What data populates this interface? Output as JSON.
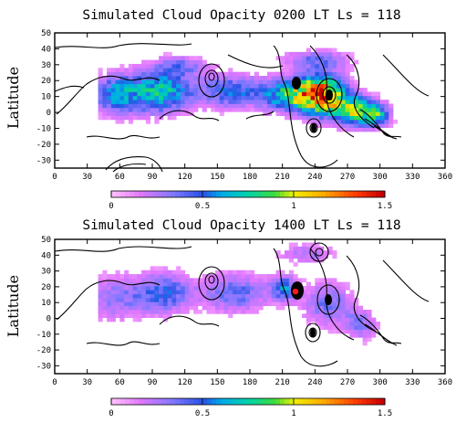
{
  "chart_data": [
    {
      "type": "heatmap",
      "title": "Simulated Cloud Opacity 0200 LT Ls = 118",
      "ylabel": "Latitude",
      "xlabel": "",
      "xlim": [
        0,
        360
      ],
      "ylim": [
        -35,
        50
      ],
      "x_ticks": [
        "0",
        "30",
        "60",
        "90",
        "120",
        "150",
        "180",
        "210",
        "240",
        "270",
        "300",
        "330",
        "360"
      ],
      "y_ticks": [
        "50",
        "40",
        "30",
        "20",
        "10",
        "0",
        "-10",
        "-20",
        "-30"
      ],
      "colorbar": {
        "range": [
          0,
          1.5
        ],
        "ticks": [
          "0",
          "0.5",
          "1",
          "1.5"
        ]
      },
      "blobs": [
        {
          "lon": 55,
          "lat": 10,
          "rlon": 22,
          "rlat": 12,
          "peak": 0.55
        },
        {
          "lon": 95,
          "lat": 12,
          "rlon": 28,
          "rlat": 13,
          "peak": 0.7
        },
        {
          "lon": 160,
          "lat": 12,
          "rlon": 30,
          "rlat": 10,
          "peak": 0.5
        },
        {
          "lon": 215,
          "lat": 10,
          "rlon": 25,
          "rlat": 10,
          "peak": 0.75
        },
        {
          "lon": 245,
          "lat": 10,
          "rlon": 20,
          "rlat": 12,
          "peak": 1.3
        },
        {
          "lon": 275,
          "lat": 0,
          "rlon": 18,
          "rlat": 9,
          "peak": 0.9
        },
        {
          "lon": 295,
          "lat": -3,
          "rlon": 12,
          "rlat": 7,
          "peak": 0.6
        },
        {
          "lon": 115,
          "lat": 28,
          "rlon": 25,
          "rlat": 6,
          "peak": 0.3
        },
        {
          "lon": 240,
          "lat": 32,
          "rlon": 30,
          "rlat": 6,
          "peak": 0.35
        }
      ]
    },
    {
      "type": "heatmap",
      "title": "Simulated Cloud Opacity 1400 LT Ls = 118",
      "ylabel": "Latitude",
      "xlabel": "",
      "xlim": [
        0,
        360
      ],
      "ylim": [
        -35,
        50
      ],
      "x_ticks": [
        "0",
        "30",
        "60",
        "90",
        "120",
        "150",
        "180",
        "210",
        "240",
        "270",
        "300",
        "330",
        "360"
      ],
      "y_ticks": [
        "50",
        "40",
        "30",
        "20",
        "10",
        "0",
        "-10",
        "-20",
        "-30"
      ],
      "colorbar": {
        "range": [
          0,
          1.5
        ],
        "ticks": [
          "0",
          "0.5",
          "1",
          "1.5"
        ]
      },
      "blobs": [
        {
          "lon": 55,
          "lat": 12,
          "rlon": 30,
          "rlat": 14,
          "peak": 0.3
        },
        {
          "lon": 100,
          "lat": 15,
          "rlon": 25,
          "rlat": 12,
          "peak": 0.45
        },
        {
          "lon": 165,
          "lat": 15,
          "rlon": 30,
          "rlat": 12,
          "peak": 0.4
        },
        {
          "lon": 210,
          "lat": 18,
          "rlon": 12,
          "rlat": 8,
          "peak": 0.5
        },
        {
          "lon": 250,
          "lat": 8,
          "rlon": 22,
          "rlat": 14,
          "peak": 0.35
        },
        {
          "lon": 280,
          "lat": -5,
          "rlon": 15,
          "rlat": 10,
          "peak": 0.3
        },
        {
          "lon": 230,
          "lat": 40,
          "rlon": 25,
          "rlat": 6,
          "peak": 0.25
        }
      ],
      "highlight": {
        "lon": 222,
        "lat": 17,
        "value": 1.5
      }
    }
  ]
}
